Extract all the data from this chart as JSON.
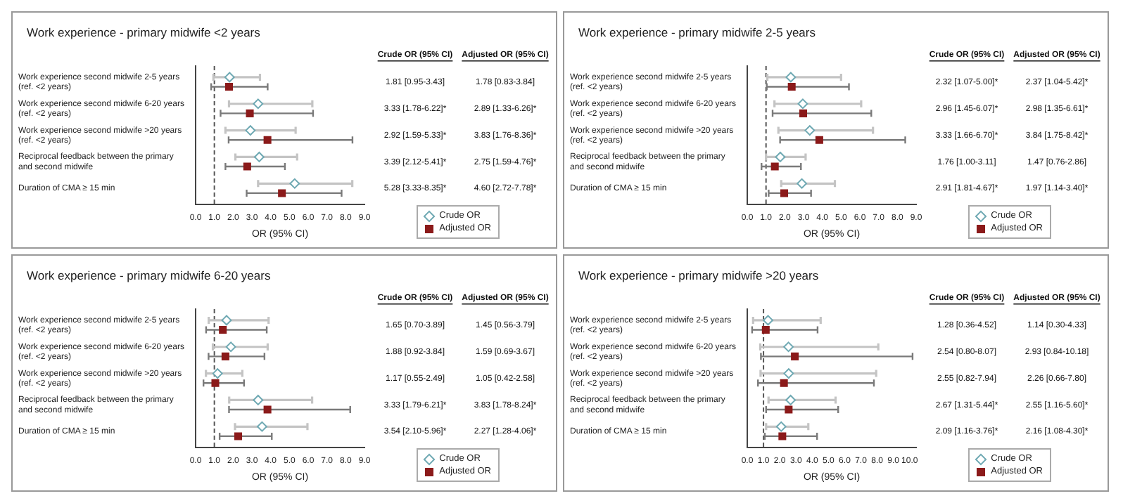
{
  "chart_data": [
    {
      "type": "scatter",
      "orientation": "horizontal",
      "title": "Work experience - primary midwife <2 years",
      "xlabel": "OR (95% CI)",
      "categories": [
        "Work experience second midwife 2-5 years\n(ref. <2 years)",
        "Work experience second midwife 6-20 years\n(ref. <2 years)",
        "Work experience second midwife >20 years\n(ref. <2 years)",
        "Reciprocal feedback between the primary\nand second midwife",
        "Duration of CMA ≥ 15 min"
      ],
      "series": [
        {
          "name": "Crude OR",
          "color": "#6fa9b3",
          "marker": "diamond",
          "values": [
            1.81,
            3.33,
            2.92,
            3.39,
            5.28
          ],
          "errors": [
            [
              0.95,
              3.43
            ],
            [
              1.78,
              6.22
            ],
            [
              1.59,
              5.33
            ],
            [
              2.12,
              5.41
            ],
            [
              3.33,
              8.35
            ]
          ],
          "value_labels": [
            "1.81 [0.95-3.43]",
            "3.33 [1.78-6.22]*",
            "2.92 [1.59-5.33]*",
            "3.39 [2.12-5.41]*",
            "5.28 [3.33-8.35]*"
          ]
        },
        {
          "name": "Adjusted OR",
          "color": "#8b1a1a",
          "marker": "square",
          "values": [
            1.78,
            2.89,
            3.83,
            2.75,
            4.6
          ],
          "errors": [
            [
              0.83,
              3.84
            ],
            [
              1.33,
              6.26
            ],
            [
              1.76,
              8.36
            ],
            [
              1.59,
              4.76
            ],
            [
              2.72,
              7.78
            ]
          ],
          "value_labels": [
            "1.78 [0.83-3.84]",
            "2.89 [1.33-6.26]*",
            "3.83 [1.76-8.36]*",
            "2.75 [1.59-4.76]*",
            "4.60 [2.72-7.78]*"
          ]
        }
      ],
      "xlim": [
        0,
        9
      ],
      "xticks": [
        {
          "value": 0,
          "label": "0.0"
        },
        {
          "value": 1,
          "label": "1.0"
        },
        {
          "value": 2,
          "label": "2.0"
        },
        {
          "value": 3,
          "label": "3.0"
        },
        {
          "value": 4,
          "label": "4.0"
        },
        {
          "value": 5,
          "label": "5.0"
        },
        {
          "value": 6,
          "label": "6.0"
        },
        {
          "value": 7,
          "label": "7.0"
        },
        {
          "value": 8,
          "label": "8.0"
        },
        {
          "value": 9,
          "label": "9.0"
        }
      ],
      "ref_lines": [
        {
          "axis": "x",
          "value": 1,
          "line_style": "dashed"
        }
      ],
      "annotations": [
        "Crude OR (95% CI)",
        "Adjusted OR (95% CI)"
      ],
      "legend": "bottom right",
      "grid": false
    },
    {
      "type": "scatter",
      "orientation": "horizontal",
      "title": "Work experience - primary midwife 2-5 years",
      "xlabel": "OR (95% CI)",
      "categories": [
        "Work experience second midwife 2-5 years\n(ref. <2 years)",
        "Work experience second midwife 6-20 years\n(ref. <2 years)",
        "Work experience second midwife >20 years\n(ref. <2 years)",
        "Reciprocal feedback between the primary\nand second midwife",
        "Duration of CMA ≥ 15 min"
      ],
      "series": [
        {
          "name": "Crude OR",
          "color": "#6fa9b3",
          "marker": "diamond",
          "values": [
            2.32,
            2.96,
            3.33,
            1.76,
            2.91
          ],
          "errors": [
            [
              1.07,
              5.0
            ],
            [
              1.45,
              6.07
            ],
            [
              1.66,
              6.7
            ],
            [
              1.0,
              3.11
            ],
            [
              1.81,
              4.67
            ]
          ],
          "value_labels": [
            "2.32 [1.07-5.00]*",
            "2.96 [1.45-6.07]*",
            "3.33 [1.66-6.70]*",
            "1.76 [1.00-3.11]",
            "2.91 [1.81-4.67]*"
          ]
        },
        {
          "name": "Adjusted OR",
          "color": "#8b1a1a",
          "marker": "square",
          "values": [
            2.37,
            2.98,
            3.84,
            1.47,
            1.97
          ],
          "errors": [
            [
              1.04,
              5.42
            ],
            [
              1.35,
              6.61
            ],
            [
              1.75,
              8.42
            ],
            [
              0.76,
              2.86
            ],
            [
              1.14,
              3.4
            ]
          ],
          "value_labels": [
            "2.37 [1.04-5.42]*",
            "2.98 [1.35-6.61]*",
            "3.84 [1.75-8.42]*",
            "1.47 [0.76-2.86]",
            "1.97 [1.14-3.40]*"
          ]
        }
      ],
      "xlim": [
        0,
        9
      ],
      "xticks": [
        {
          "value": 0,
          "label": "0.0"
        },
        {
          "value": 1,
          "label": "1.0"
        },
        {
          "value": 2,
          "label": "2.0"
        },
        {
          "value": 3,
          "label": "3.0"
        },
        {
          "value": 4,
          "label": "4.0"
        },
        {
          "value": 5,
          "label": "5.0"
        },
        {
          "value": 6,
          "label": "6.0"
        },
        {
          "value": 7,
          "label": "7.0"
        },
        {
          "value": 8,
          "label": "8.0"
        },
        {
          "value": 9,
          "label": "9.0"
        }
      ],
      "ref_lines": [
        {
          "axis": "x",
          "value": 1,
          "line_style": "dashed"
        }
      ],
      "annotations": [
        "Crude OR (95% CI)",
        "Adjusted OR (95% CI)"
      ],
      "legend": "bottom right",
      "grid": false
    },
    {
      "type": "scatter",
      "orientation": "horizontal",
      "title": "Work experience - primary midwife 6-20 years",
      "xlabel": "OR (95% CI)",
      "categories": [
        "Work experience second midwife 2-5 years\n(ref. <2 years)",
        "Work experience second midwife 6-20 years\n(ref. <2 years)",
        "Work experience second midwife >20 years\n(ref. <2 years)",
        "Reciprocal feedback between the primary\nand second midwife",
        "Duration of CMA ≥ 15 min"
      ],
      "series": [
        {
          "name": "Crude OR",
          "color": "#6fa9b3",
          "marker": "diamond",
          "values": [
            1.65,
            1.88,
            1.17,
            3.33,
            3.54
          ],
          "errors": [
            [
              0.7,
              3.89
            ],
            [
              0.92,
              3.84
            ],
            [
              0.55,
              2.49
            ],
            [
              1.79,
              6.21
            ],
            [
              2.1,
              5.96
            ]
          ],
          "value_labels": [
            "1.65 [0.70-3.89]",
            "1.88 [0.92-3.84]",
            "1.17 [0.55-2.49]",
            "3.33 [1.79-6.21]*",
            "3.54 [2.10-5.96]*"
          ]
        },
        {
          "name": "Adjusted OR",
          "color": "#8b1a1a",
          "marker": "square",
          "values": [
            1.45,
            1.59,
            1.05,
            3.83,
            2.27
          ],
          "errors": [
            [
              0.56,
              3.79
            ],
            [
              0.69,
              3.67
            ],
            [
              0.42,
              2.58
            ],
            [
              1.78,
              8.24
            ],
            [
              1.28,
              4.06
            ]
          ],
          "value_labels": [
            "1.45 [0.56-3.79]",
            "1.59 [0.69-3.67]",
            "1.05 [0.42-2.58]",
            "3.83 [1.78-8.24]*",
            "2.27 [1.28-4.06]*"
          ]
        }
      ],
      "xlim": [
        0,
        9
      ],
      "xticks": [
        {
          "value": 0,
          "label": "0.0"
        },
        {
          "value": 1,
          "label": "1.0"
        },
        {
          "value": 2,
          "label": "2.0"
        },
        {
          "value": 3,
          "label": "3.0"
        },
        {
          "value": 4,
          "label": "4.0"
        },
        {
          "value": 5,
          "label": "5.0"
        },
        {
          "value": 6,
          "label": "6.0"
        },
        {
          "value": 7,
          "label": "7.0"
        },
        {
          "value": 8,
          "label": "8.0"
        },
        {
          "value": 9,
          "label": "9.0"
        }
      ],
      "ref_lines": [
        {
          "axis": "x",
          "value": 1,
          "line_style": "dashed"
        }
      ],
      "annotations": [
        "Crude OR (95% CI)",
        "Adjusted OR (95% CI)"
      ],
      "legend": "bottom right",
      "grid": false
    },
    {
      "type": "scatter",
      "orientation": "horizontal",
      "title": "Work experience - primary midwife >20 years",
      "xlabel": "OR (95% CI)",
      "categories": [
        "Work experience second midwife 2-5 years\n(ref. <2 years)",
        "Work experience second midwife 6-20 years\n(ref. <2 years)",
        "Work experience second midwife >20 years\n(ref. <2 years)",
        "Reciprocal feedback between the primary\nand second midwife",
        "Duration of CMA ≥ 15 min"
      ],
      "series": [
        {
          "name": "Crude OR",
          "color": "#6fa9b3",
          "marker": "diamond",
          "values": [
            1.28,
            2.54,
            2.55,
            2.67,
            2.09
          ],
          "errors": [
            [
              0.36,
              4.52
            ],
            [
              0.8,
              8.07
            ],
            [
              0.82,
              7.94
            ],
            [
              1.31,
              5.44
            ],
            [
              1.16,
              3.76
            ]
          ],
          "value_labels": [
            "1.28 [0.36-4.52]",
            "2.54 [0.80-8.07]",
            "2.55 [0.82-7.94]",
            "2.67 [1.31-5.44]*",
            "2.09 [1.16-3.76]*"
          ]
        },
        {
          "name": "Adjusted OR",
          "color": "#8b1a1a",
          "marker": "square",
          "values": [
            1.14,
            2.93,
            2.26,
            2.55,
            2.16
          ],
          "errors": [
            [
              0.3,
              4.33
            ],
            [
              0.84,
              10.18
            ],
            [
              0.66,
              7.8
            ],
            [
              1.16,
              5.6
            ],
            [
              1.08,
              4.3
            ]
          ],
          "value_labels": [
            "1.14 [0.30-4.33]",
            "2.93 [0.84-10.18]",
            "2.26 [0.66-7.80]",
            "2.55 [1.16-5.60]*",
            "2.16 [1.08-4.30]*"
          ]
        }
      ],
      "xlim": [
        0,
        10.4
      ],
      "xticks": [
        {
          "value": 0,
          "label": "0.0"
        },
        {
          "value": 1,
          "label": "1.0"
        },
        {
          "value": 2,
          "label": "2.0"
        },
        {
          "value": 3,
          "label": "3.0"
        },
        {
          "value": 4,
          "label": "4.0"
        },
        {
          "value": 5,
          "label": "5.0"
        },
        {
          "value": 6,
          "label": "6.0"
        },
        {
          "value": 7,
          "label": "7.0"
        },
        {
          "value": 8,
          "label": "8.0"
        },
        {
          "value": 9,
          "label": "9.0"
        },
        {
          "value": 10,
          "label": "10.0"
        }
      ],
      "ref_lines": [
        {
          "axis": "x",
          "value": 1,
          "line_style": "dashed"
        }
      ],
      "annotations": [
        "Crude OR (95% CI)",
        "Adjusted OR (95% CI)"
      ],
      "legend": "bottom right",
      "grid": false
    }
  ]
}
